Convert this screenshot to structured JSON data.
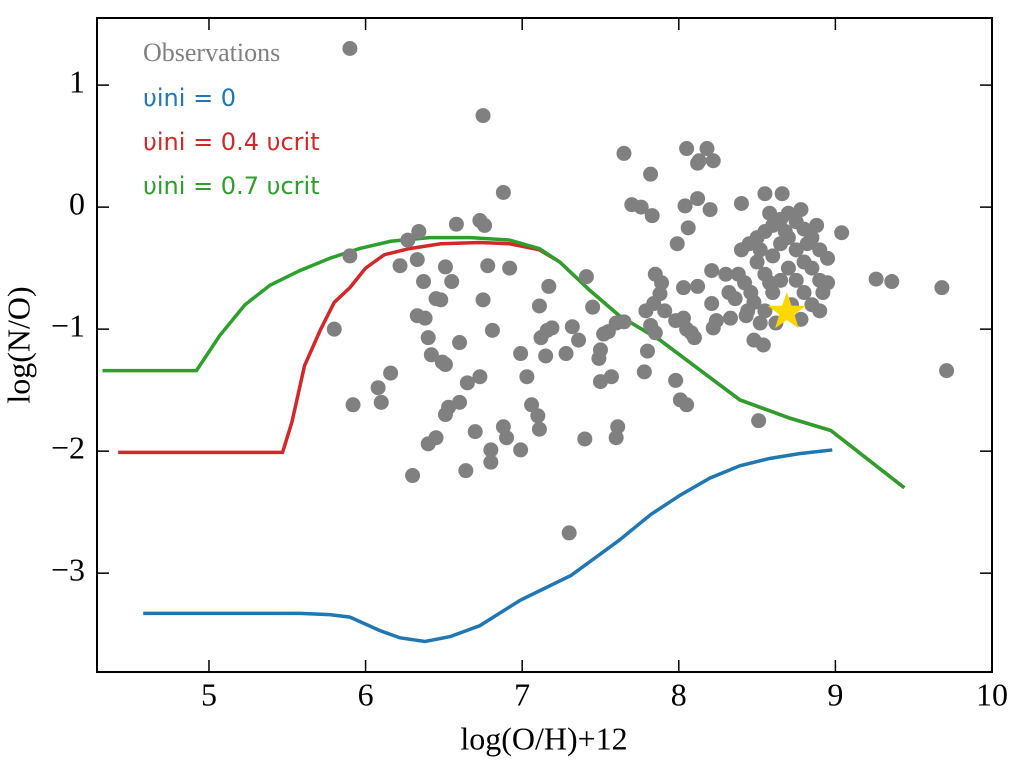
{
  "chart_data": {
    "type": "scatter",
    "xlabel": "log(O/H)+12",
    "ylabel": "log(N/O)",
    "xlim": [
      4.285,
      10
    ],
    "ylim": [
      -3.81,
      1.55
    ],
    "xticks": [
      5,
      6,
      7,
      8,
      9,
      10
    ],
    "yticks": [
      {
        "value": -3,
        "label": "−3"
      },
      {
        "value": -2,
        "label": "−2"
      },
      {
        "value": -1,
        "label": "−1"
      },
      0,
      1
    ],
    "scatter": {
      "name": "Observations",
      "color": "#808080",
      "x": [
        5.9,
        6.75,
        6.88,
        7.65,
        7.82,
        8.05,
        8.18,
        8.13,
        8.22,
        8.12,
        7.7,
        7.76,
        7.83,
        8.04,
        8.12,
        8.2,
        8.06,
        7.99,
        8.4,
        8.55,
        8.66,
        9.04,
        9.26,
        9.36,
        9.68,
        9.71,
        8.51,
        5.8,
        5.9,
        5.92,
        6.08,
        6.1,
        6.16,
        6.22,
        6.27,
        6.34,
        6.33,
        6.3,
        6.37,
        6.33,
        6.38,
        6.4,
        6.42,
        6.49,
        6.45,
        6.48,
        6.51,
        6.58,
        6.4,
        6.45,
        6.51,
        6.51,
        6.53,
        6.6,
        6.65,
        6.6,
        6.55,
        6.73,
        6.76,
        6.78,
        6.75,
        6.81,
        6.73,
        6.7,
        6.64,
        6.8,
        6.8,
        6.88,
        6.9,
        6.99,
        6.92,
        6.99,
        7.03,
        7.06,
        7.1,
        7.11,
        7.15,
        7.12,
        7.16,
        7.19,
        7.17,
        7.11,
        7.28,
        7.3,
        7.32,
        7.36,
        7.41,
        7.45,
        7.4,
        7.49,
        7.5,
        7.5,
        7.52,
        7.55,
        7.57,
        7.6,
        7.65,
        7.61,
        7.6,
        7.79,
        7.84,
        7.85,
        7.89,
        7.88,
        7.91,
        7.82,
        7.85,
        7.8,
        7.78,
        7.98,
        8.01,
        8.05,
        7.98,
        8.03,
        8.05,
        8.08,
        8.1,
        8.03,
        8.12,
        8.21,
        8.21,
        8.24,
        8.22,
        8.33,
        8.43,
        8.48,
        8.54,
        8.4,
        8.45,
        8.5,
        8.55,
        8.6,
        8.65,
        8.7,
        8.75,
        8.8,
        8.85,
        8.9,
        8.95,
        8.38,
        8.42,
        8.46,
        8.5,
        8.55,
        8.6,
        8.65,
        8.7,
        8.75,
        8.8,
        8.85,
        8.9,
        8.92,
        8.48,
        8.55,
        8.6,
        8.65,
        8.7,
        8.75,
        8.8,
        8.85,
        8.9,
        8.62,
        8.72,
        8.78,
        8.68,
        8.58,
        8.52,
        8.82,
        8.36,
        8.44,
        8.58,
        8.78,
        8.88,
        8.95,
        8.52,
        8.3,
        8.32
      ],
      "y": [
        1.3,
        0.75,
        0.12,
        0.44,
        0.27,
        0.48,
        0.48,
        0.38,
        0.38,
        0.36,
        0.02,
        0.0,
        -0.07,
        0.01,
        0.07,
        -0.02,
        -0.17,
        -0.3,
        0.03,
        0.11,
        0.11,
        -0.21,
        -0.59,
        -0.61,
        -0.66,
        -1.34,
        -1.75,
        -1.0,
        -0.4,
        -1.62,
        -1.48,
        -1.6,
        -1.36,
        -0.48,
        -0.27,
        -0.2,
        -0.43,
        -2.2,
        -0.61,
        -0.89,
        -0.91,
        -1.07,
        -1.21,
        -1.27,
        -0.75,
        -0.76,
        -0.49,
        -0.14,
        -1.94,
        -1.89,
        -1.29,
        -1.7,
        -1.64,
        -1.6,
        -1.44,
        -1.11,
        -0.61,
        -0.11,
        -0.15,
        -0.48,
        -0.76,
        -1.01,
        -1.39,
        -1.84,
        -2.16,
        -1.99,
        -2.09,
        -1.8,
        -1.89,
        -1.99,
        -0.5,
        -1.2,
        -1.39,
        -1.62,
        -1.71,
        -0.81,
        -1.22,
        -1.07,
        -1.01,
        -0.99,
        -0.65,
        -1.82,
        -1.2,
        -2.67,
        -0.98,
        -1.09,
        -0.57,
        -0.82,
        -1.9,
        -1.24,
        -1.17,
        -1.43,
        -1.04,
        -1.02,
        -1.39,
        -0.95,
        -0.94,
        -1.8,
        -1.89,
        -0.85,
        -0.79,
        -0.55,
        -0.62,
        -0.71,
        -0.85,
        -0.97,
        -1.03,
        -1.18,
        -1.35,
        -1.42,
        -1.58,
        -1.62,
        -0.93,
        -0.91,
        -1.0,
        -1.03,
        -1.07,
        -0.66,
        -0.65,
        -0.52,
        -0.79,
        -0.93,
        -0.99,
        -0.91,
        -0.89,
        -1.09,
        -1.13,
        -0.35,
        -0.3,
        -0.25,
        -0.2,
        -0.15,
        -0.1,
        -0.05,
        -0.12,
        -0.18,
        -0.25,
        -0.35,
        -0.42,
        -0.55,
        -0.62,
        -0.7,
        -0.45,
        -0.55,
        -0.4,
        -0.3,
        -0.25,
        -0.35,
        -0.45,
        -0.5,
        -0.6,
        -0.7,
        -0.78,
        -0.85,
        -0.7,
        -0.6,
        -0.5,
        -0.6,
        -0.7,
        -0.8,
        -0.85,
        -0.95,
        -0.8,
        -0.92,
        -0.2,
        -0.62,
        -0.35,
        -0.3,
        -0.75,
        -0.85,
        -0.05,
        -0.02,
        -0.15,
        -0.62,
        -0.95,
        -0.55,
        -0.7
      ]
    },
    "highlight": {
      "x": 8.69,
      "y": -0.86,
      "color": "#ffd700"
    },
    "series": [
      {
        "name": "υini = 0",
        "color": "#1f77b4",
        "x": [
          4.58,
          5.58,
          5.77,
          5.9,
          6.09,
          6.22,
          6.38,
          6.54,
          6.73,
          6.99,
          7.31,
          7.62,
          7.82,
          8.01,
          8.2,
          8.39,
          8.58,
          8.77,
          8.98
        ],
        "values": [
          -3.33,
          -3.33,
          -3.34,
          -3.36,
          -3.47,
          -3.53,
          -3.56,
          -3.52,
          -3.43,
          -3.22,
          -3.02,
          -2.73,
          -2.52,
          -2.36,
          -2.22,
          -2.12,
          -2.06,
          -2.02,
          -1.99
        ]
      },
      {
        "name": "υini = 0.4 υcrit",
        "color": "#d62728",
        "x": [
          4.42,
          5.47,
          5.53,
          5.61,
          5.71,
          5.8,
          5.9,
          6.0,
          6.12,
          6.28,
          6.48,
          6.73,
          6.92,
          7.11,
          7.24,
          7.43,
          7.62,
          7.88,
          8.14,
          8.39,
          8.71,
          8.97,
          9.09,
          9.28,
          9.44
        ],
        "values": [
          -2.01,
          -2.01,
          -1.76,
          -1.3,
          -1.01,
          -0.78,
          -0.66,
          -0.5,
          -0.39,
          -0.34,
          -0.3,
          -0.29,
          -0.3,
          -0.35,
          -0.45,
          -0.68,
          -0.89,
          -1.09,
          -1.34,
          -1.58,
          -1.73,
          -1.83,
          -1.95,
          -2.14,
          -2.3
        ]
      },
      {
        "name": "υini = 0.7 υcrit",
        "color": "#2ca02c",
        "x": [
          4.32,
          4.92,
          5.07,
          5.23,
          5.39,
          5.58,
          5.77,
          5.96,
          6.16,
          6.41,
          6.67,
          6.92,
          7.11,
          7.24,
          7.43,
          7.62,
          7.88,
          8.14,
          8.39,
          8.71,
          8.97,
          9.09,
          9.28,
          9.44
        ],
        "values": [
          -1.34,
          -1.34,
          -1.05,
          -0.8,
          -0.64,
          -0.52,
          -0.42,
          -0.34,
          -0.28,
          -0.25,
          -0.25,
          -0.27,
          -0.34,
          -0.45,
          -0.68,
          -0.89,
          -1.09,
          -1.34,
          -1.58,
          -1.73,
          -1.83,
          -1.95,
          -2.14,
          -2.3
        ]
      }
    ]
  }
}
